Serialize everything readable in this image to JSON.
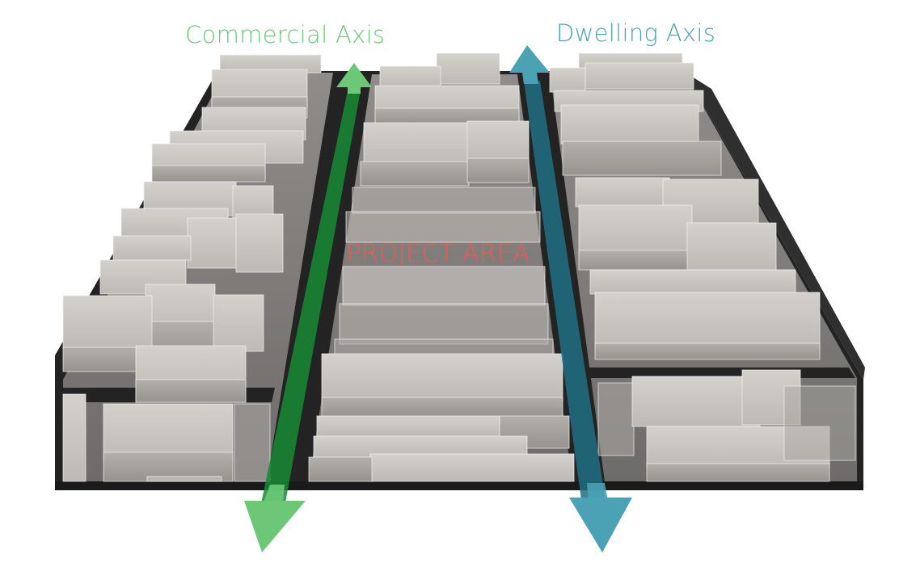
{
  "labels": {
    "commercial_axis": "Commercial Axis",
    "dwelling_axis": "Dwelling Axis",
    "project_area": "PROJECT AREA"
  },
  "colors": {
    "commercial": "#6cc877",
    "commercial_dark": "#178a35",
    "dwelling": "#4aa2b4",
    "dwelling_dark": "#1f6f82",
    "project_label": "#e85a5a",
    "base": "#232323",
    "building_top": "#c9c6c2",
    "building_side": "#a9a6a1"
  },
  "icons": {
    "commercial_arrow": "double-arrow-icon",
    "dwelling_arrow": "double-arrow-icon"
  }
}
